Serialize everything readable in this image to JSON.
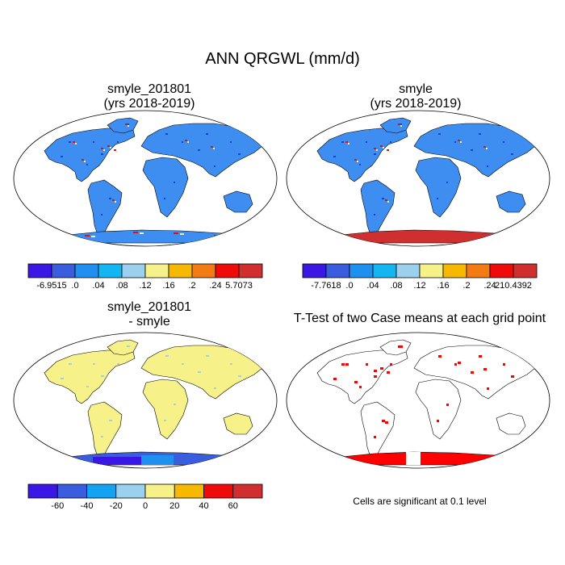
{
  "figure": {
    "title": "ANN QRGWL (mm/d)"
  },
  "panels": [
    {
      "id": "case",
      "title_line1": "smyle_201801",
      "title_line2": "(yrs 2018-2019)",
      "land_color": "#3d8ef0",
      "antarctic_color": "#3d8ef0",
      "colorbar": {
        "colors": [
          "#3b17e6",
          "#3a5de0",
          "#1f8ff0",
          "#14b6f2",
          "#9bd0ee",
          "#f7f18a",
          "#f6b800",
          "#f47a14",
          "#ef0b0b",
          "#cf2f2f"
        ],
        "labels": [
          "-6.9515",
          ".0",
          ".04",
          ".08",
          ".12",
          ".16",
          ".2",
          ".24",
          "5.7073"
        ]
      }
    },
    {
      "id": "control",
      "title_line1": "smyle",
      "title_line2": "(yrs 2018-2019)",
      "land_color": "#3d8ef0",
      "antarctic_color": "#cf2f2f",
      "colorbar": {
        "colors": [
          "#3b17e6",
          "#3a5de0",
          "#1f8ff0",
          "#14b6f2",
          "#9bd0ee",
          "#f7f18a",
          "#f6b800",
          "#f47a14",
          "#ef0b0b",
          "#cf2f2f"
        ],
        "labels": [
          "-7.7618",
          ".0",
          ".04",
          ".08",
          ".12",
          ".16",
          ".2",
          ".24",
          "210.4392"
        ]
      }
    },
    {
      "id": "difference",
      "title_line1": "smyle_201801",
      "title_line2": "- smyle",
      "land_color": "#f7f18a",
      "antarctic_color": "#3a5de0",
      "colorbar": {
        "colors": [
          "#3b17e6",
          "#3a5de0",
          "#14a2f2",
          "#9bd0ee",
          "#f7f18a",
          "#f6b800",
          "#ef0b0b",
          "#cf2f2f"
        ],
        "labels": [
          "-60",
          "-40",
          "-20",
          "0",
          "20",
          "40",
          "60"
        ]
      }
    },
    {
      "id": "ttest",
      "title_line1": "T-Test of two Case means at each grid point",
      "land_color": "#ffffff",
      "antarctic_color": "#ff0000",
      "note": "Cells are significant at 0.1 level"
    }
  ]
}
